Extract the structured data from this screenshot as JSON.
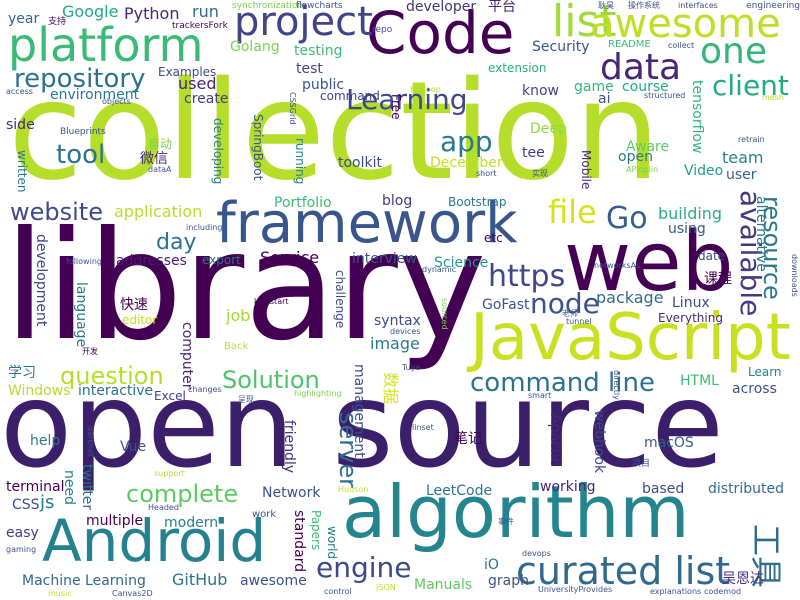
{
  "words": [
    {
      "text": "collection",
      "color": "#b5de2b",
      "rot": 0
    },
    {
      "text": "library",
      "color": "#440154",
      "rot": 0
    },
    {
      "text": "open source",
      "color": "#3b1f6b",
      "rot": 0
    },
    {
      "text": "algorithm",
      "color": "#25858e",
      "rot": 0
    },
    {
      "text": "Android",
      "color": "#26818e",
      "rot": 0
    },
    {
      "text": "JavaScript",
      "color": "#c8e020",
      "rot": 0
    },
    {
      "text": "framework",
      "color": "#39568c",
      "rot": 0
    },
    {
      "text": "web",
      "color": "#440154",
      "rot": 0
    },
    {
      "text": "Code",
      "color": "#440154",
      "rot": 0
    },
    {
      "text": "platform",
      "color": "#3aba76",
      "rot": 0
    },
    {
      "text": "project",
      "color": "#414487",
      "rot": 0
    },
    {
      "text": "list",
      "color": "#a0da39",
      "rot": 0
    },
    {
      "text": "awesome",
      "color": "#bddf26",
      "rot": 0
    },
    {
      "text": "data",
      "color": "#482576",
      "rot": 0
    },
    {
      "text": "one",
      "color": "#34b679",
      "rot": 0
    },
    {
      "text": "curated list",
      "color": "#31688e",
      "rot": 0
    },
    {
      "text": "repository",
      "color": "#2c728e",
      "rot": 0
    },
    {
      "text": "Learning",
      "color": "#3f4788",
      "rot": 0
    },
    {
      "text": "client",
      "color": "#25ab82",
      "rot": 0
    },
    {
      "text": "app",
      "color": "#2a788e",
      "rot": 0
    },
    {
      "text": "tool",
      "color": "#2c728e",
      "rot": 0
    },
    {
      "text": "website",
      "color": "#3e4a89",
      "rot": 0
    },
    {
      "text": "file",
      "color": "#d8e219",
      "rot": 0
    },
    {
      "text": "Go",
      "color": "#35608d",
      "rot": 0
    },
    {
      "text": "available",
      "color": "#453781",
      "rot": 90
    },
    {
      "text": "resource",
      "color": "#2a788e",
      "rot": 90
    },
    {
      "text": "https",
      "color": "#3f4889",
      "rot": 0
    },
    {
      "text": "node",
      "color": "#3b528b",
      "rot": 0
    },
    {
      "text": "command line",
      "color": "#2c728e",
      "rot": 0
    },
    {
      "text": "question",
      "color": "#b5de2b",
      "rot": 0
    },
    {
      "text": "Solution",
      "color": "#4ec36b",
      "rot": 0
    },
    {
      "text": "complete",
      "color": "#5ec962",
      "rot": 0
    },
    {
      "text": "engine",
      "color": "#3e4989",
      "rot": 0
    },
    {
      "text": "server",
      "color": "#2e6f8e",
      "rot": 90
    },
    {
      "text": "day",
      "color": "#2c728e",
      "rot": 0
    },
    {
      "text": "工具",
      "color": "#2f6c8e",
      "rot": 90
    },
    {
      "text": "Google",
      "color": "#22a884",
      "rot": 0
    },
    {
      "text": "Python",
      "color": "#482475",
      "rot": 0
    },
    {
      "text": "run",
      "color": "#31688e",
      "rot": 0
    },
    {
      "text": "developer",
      "color": "#46337e",
      "rot": 0
    },
    {
      "text": "平台",
      "color": "#482173",
      "rot": 0
    },
    {
      "text": "Golang",
      "color": "#7ad151",
      "rot": 0
    },
    {
      "text": "testing",
      "color": "#3dbc74",
      "rot": 0
    },
    {
      "text": "Security",
      "color": "#3b528b",
      "rot": 0
    },
    {
      "text": "test",
      "color": "#414487",
      "rot": 0
    },
    {
      "text": "extension",
      "color": "#29af7f",
      "rot": 0
    },
    {
      "text": "course",
      "color": "#22a884",
      "rot": 0
    },
    {
      "text": "game",
      "color": "#35b779",
      "rot": 0
    },
    {
      "text": "ai",
      "color": "#3b528b",
      "rot": 0
    },
    {
      "text": "know",
      "color": "#414487",
      "rot": 0
    },
    {
      "text": "environment",
      "color": "#2a788e",
      "rot": 0
    },
    {
      "text": "used",
      "color": "#482475",
      "rot": 0
    },
    {
      "text": "create",
      "color": "#433e85",
      "rot": 0
    },
    {
      "text": "public",
      "color": "#3b528b",
      "rot": 0
    },
    {
      "text": "command",
      "color": "#414487",
      "rot": 0
    },
    {
      "text": "year",
      "color": "#31688e",
      "rot": 0
    },
    {
      "text": "side",
      "color": "#482878",
      "rot": 0
    },
    {
      "text": "Examples",
      "color": "#3e4a89",
      "rot": 0
    },
    {
      "text": "Deep",
      "color": "#8fd744",
      "rot": 0
    },
    {
      "text": "tee",
      "color": "#443983",
      "rot": 0
    },
    {
      "text": "Aware",
      "color": "#5ec962",
      "rot": 0
    },
    {
      "text": "open",
      "color": "#2a788e",
      "rot": 0
    },
    {
      "text": "team",
      "color": "#26828e",
      "rot": 0
    },
    {
      "text": "user",
      "color": "#355f8d",
      "rot": 0
    },
    {
      "text": "Video",
      "color": "#1f9e89",
      "rot": 0
    },
    {
      "text": "Mobile",
      "color": "#482878",
      "rot": 90
    },
    {
      "text": "toolkit",
      "color": "#3e4a89",
      "rot": 0
    },
    {
      "text": "December",
      "color": "#c2df23",
      "rot": 0
    },
    {
      "text": "blog",
      "color": "#453781",
      "rot": 0
    },
    {
      "text": "Portfolio",
      "color": "#3aba76",
      "rot": 0
    },
    {
      "text": "Bootstrap",
      "color": "#2a788e",
      "rot": 0
    },
    {
      "text": "application",
      "color": "#b5de2b",
      "rot": 0
    },
    {
      "text": "building",
      "color": "#29af7f",
      "rot": 0
    },
    {
      "text": "using",
      "color": "#38598c",
      "rot": 0
    },
    {
      "text": "date",
      "color": "#3e4a89",
      "rot": 0
    },
    {
      "text": "addresses",
      "color": "#481b6d",
      "rot": 0
    },
    {
      "text": "export",
      "color": "#2c728e",
      "rot": 0
    },
    {
      "text": "Service",
      "color": "#440154",
      "rot": 0
    },
    {
      "text": "interview",
      "color": "#3b528b",
      "rot": 0
    },
    {
      "text": "Science",
      "color": "#1f9a8a",
      "rot": 0
    },
    {
      "text": "GoFast",
      "color": "#3b528b",
      "rot": 0
    },
    {
      "text": "package",
      "color": "#2f6c8e",
      "rot": 0
    },
    {
      "text": "Linux",
      "color": "#3e4a89",
      "rot": 0
    },
    {
      "text": "Everything",
      "color": "#482878",
      "rot": 0
    },
    {
      "text": "language",
      "color": "#2a788e",
      "rot": 90
    },
    {
      "text": "development",
      "color": "#404688",
      "rot": 90
    },
    {
      "text": "快速",
      "color": "#440154",
      "rot": 0
    },
    {
      "text": "editor",
      "color": "#c2df23",
      "rot": 0
    },
    {
      "text": "job",
      "color": "#a2da37",
      "rot": 0
    },
    {
      "text": "syntax",
      "color": "#3e4a89",
      "rot": 0
    },
    {
      "text": "image",
      "color": "#2a788e",
      "rot": 0
    },
    {
      "text": "数据",
      "color": "#d8e219",
      "rot": 90
    },
    {
      "text": "学习",
      "color": "#2c728e",
      "rot": 0
    },
    {
      "text": "Windows",
      "color": "#b5de2b",
      "rot": 0
    },
    {
      "text": "interactive",
      "color": "#2c728e",
      "rot": 0
    },
    {
      "text": "Excel",
      "color": "#414487",
      "rot": 0
    },
    {
      "text": "HTML",
      "color": "#3dbc74",
      "rot": 0
    },
    {
      "text": "across",
      "color": "#3b528b",
      "rot": 0
    },
    {
      "text": "Learn",
      "color": "#26828e",
      "rot": 0
    },
    {
      "text": "课程",
      "color": "#440154",
      "rot": 0
    },
    {
      "text": "help",
      "color": "#2a788e",
      "rot": 0
    },
    {
      "text": "Vue",
      "color": "#3b528b",
      "rot": 0
    },
    {
      "text": "friendly",
      "color": "#46327e",
      "rot": 90
    },
    {
      "text": "management",
      "color": "#3b528b",
      "rot": 90
    },
    {
      "text": "笔记",
      "color": "#440154",
      "rot": 0
    },
    {
      "text": "Apache",
      "color": "#482878",
      "rot": 90
    },
    {
      "text": "webhook",
      "color": "#3e4a89",
      "rot": 90
    },
    {
      "text": "macOS",
      "color": "#34618d",
      "rot": 0
    },
    {
      "text": "terminal",
      "color": "#440154",
      "rot": 0
    },
    {
      "text": "CSS",
      "color": "#3b528b",
      "rot": 0
    },
    {
      "text": "js",
      "color": "#2a788e",
      "rot": 0
    },
    {
      "text": "need",
      "color": "#26828e",
      "rot": 90
    },
    {
      "text": "twitter",
      "color": "#2c728e",
      "rot": 90
    },
    {
      "text": "Network",
      "color": "#3b528b",
      "rot": 0
    },
    {
      "text": "LeetCode",
      "color": "#2a788e",
      "rot": 0
    },
    {
      "text": "working",
      "color": "#482475",
      "rot": 0
    },
    {
      "text": "based",
      "color": "#3e4a89",
      "rot": 0
    },
    {
      "text": "distributed",
      "color": "#2f6c8e",
      "rot": 0
    },
    {
      "text": "multiple",
      "color": "#440154",
      "rot": 0
    },
    {
      "text": "modern",
      "color": "#26828e",
      "rot": 0
    },
    {
      "text": "easy",
      "color": "#433e85",
      "rot": 0
    },
    {
      "text": "standard",
      "color": "#440154",
      "rot": 90
    },
    {
      "text": "Papers",
      "color": "#3dbc74",
      "rot": 90
    },
    {
      "text": "iO",
      "color": "#31688e",
      "rot": 0
    },
    {
      "text": "graph",
      "color": "#3b528b",
      "rot": 0
    },
    {
      "text": "Machine Learning",
      "color": "#31688e",
      "rot": 0
    },
    {
      "text": "GitHub",
      "color": "#2c728e",
      "rot": 0
    },
    {
      "text": "awesome",
      "color": "#3b528b",
      "rot": 0
    },
    {
      "text": "Manuals",
      "color": "#5ec962",
      "rot": 0
    },
    {
      "text": "吴恩达",
      "color": "#46327e",
      "rot": 0
    },
    {
      "text": "README",
      "color": "#3dbc74",
      "rot": 0
    },
    {
      "text": "Blueprints",
      "color": "#3b528b",
      "rot": 0
    },
    {
      "text": "微信",
      "color": "#482878",
      "rot": 0
    },
    {
      "text": "自动",
      "color": "#7ad151",
      "rot": 0
    },
    {
      "text": "SpringBoot",
      "color": "#3b528b",
      "rot": 90
    },
    {
      "text": "developing",
      "color": "#2a788e",
      "rot": 90
    },
    {
      "text": "running",
      "color": "#26828e",
      "rot": 90
    },
    {
      "text": "tensorflow",
      "color": "#2fb47c",
      "rot": 90
    },
    {
      "text": "written",
      "color": "#2a788e",
      "rot": 90
    },
    {
      "text": "alternative",
      "color": "#2a788e",
      "rot": 90
    },
    {
      "text": "computer",
      "color": "#482878",
      "rot": 90
    },
    {
      "text": "challenge",
      "color": "#3e4a89",
      "rot": 90
    },
    {
      "text": "Free",
      "color": "#440154",
      "rot": 90
    },
    {
      "text": "etc",
      "color": "#440154",
      "rot": 0
    },
    {
      "text": "支持",
      "color": "#440154",
      "rot": 0
    },
    {
      "text": "trackersFork",
      "color": "#440154",
      "rot": 0
    },
    {
      "text": "synchronization",
      "color": "#7ad151",
      "rot": 0
    },
    {
      "text": "flowcharts",
      "color": "#3b528b",
      "rot": 0
    },
    {
      "text": "engineering",
      "color": "#3b528b",
      "rot": 0
    },
    {
      "text": "repo",
      "color": "#3b528b",
      "rot": 0
    },
    {
      "text": "collect",
      "color": "#3b528b",
      "rot": 0
    },
    {
      "text": "Hadoop",
      "color": "#b5de2b",
      "rot": 0
    },
    {
      "text": "access",
      "color": "#3b528b",
      "rot": 0
    },
    {
      "text": "objects",
      "color": "#3b528b",
      "rot": 0
    },
    {
      "text": "structured",
      "color": "#3b528b",
      "rot": 0
    },
    {
      "text": "retrain",
      "color": "#3b528b",
      "rot": 0
    },
    {
      "text": "short",
      "color": "#3b528b",
      "rot": 0
    },
    {
      "text": "实现",
      "color": "#3b528b",
      "rot": 0
    },
    {
      "text": "APIoplin",
      "color": "#7ad151",
      "rot": 0
    },
    {
      "text": "dataA",
      "color": "#3b528b",
      "rot": 0
    },
    {
      "text": "including",
      "color": "#3b528b",
      "rot": 0
    },
    {
      "text": "following",
      "color": "#3b528b",
      "rot": 0
    },
    {
      "text": "networksAs",
      "color": "#3b528b",
      "rot": 0
    },
    {
      "text": "kickstart",
      "color": "#440154",
      "rot": 0
    },
    {
      "text": "dynamic",
      "color": "#3b528b",
      "rot": 0
    },
    {
      "text": "老师",
      "color": "#3b528b",
      "rot": 0
    },
    {
      "text": "tunnel",
      "color": "#3b528b",
      "rot": 0
    },
    {
      "text": "开发",
      "color": "#440154",
      "rot": 0
    },
    {
      "text": "devices",
      "color": "#3b528b",
      "rot": 0
    },
    {
      "text": "Tuya",
      "color": "#3b528b",
      "rot": 0
    },
    {
      "text": "Back",
      "color": "#c2df23",
      "rot": 0
    },
    {
      "text": "changes",
      "color": "#3b528b",
      "rot": 0
    },
    {
      "text": "呈现",
      "color": "#3b528b",
      "rot": 0
    },
    {
      "text": "highlighting",
      "color": "#7ad151",
      "rot": 0
    },
    {
      "text": "smart",
      "color": "#3b528b",
      "rot": 0
    },
    {
      "text": "linset",
      "color": "#3b528b",
      "rot": 0
    },
    {
      "text": "项目",
      "color": "#3b528b",
      "rot": 0
    },
    {
      "text": "support",
      "color": "#b5de2b",
      "rot": 0
    },
    {
      "text": "Headed",
      "color": "#3b528b",
      "rot": 0
    },
    {
      "text": "Hudson",
      "color": "#c2df23",
      "rot": 0
    },
    {
      "text": "事件",
      "color": "#3b528b",
      "rot": 0
    },
    {
      "text": "devops",
      "color": "#3b528b",
      "rot": 0
    },
    {
      "text": "gaming",
      "color": "#3b528b",
      "rot": 0
    },
    {
      "text": "music",
      "color": "#c2df23",
      "rot": 0
    },
    {
      "text": "Canvas2D",
      "color": "#3b528b",
      "rot": 0
    },
    {
      "text": "control",
      "color": "#3b528b",
      "rot": 0
    },
    {
      "text": "JSON",
      "color": "#c2df23",
      "rot": 0
    },
    {
      "text": "UniversityProvides",
      "color": "#3b528b",
      "rot": 0
    },
    {
      "text": "explanations",
      "color": "#3b528b",
      "rot": 0
    },
    {
      "text": "codemod",
      "color": "#3b528b",
      "rot": 0
    },
    {
      "text": "耿昊",
      "color": "#3b528b",
      "rot": 0
    },
    {
      "text": "操作系统",
      "color": "#3b528b",
      "rot": 0
    },
    {
      "text": "interfaces",
      "color": "#3b528b",
      "rot": 0
    },
    {
      "text": "mesh",
      "color": "#c2df23",
      "rot": 0
    },
    {
      "text": "work",
      "color": "#3b528b",
      "rot": 0
    },
    {
      "text": "world",
      "color": "#2a788e",
      "rot": 90
    },
    {
      "text": "directly",
      "color": "#3b528b",
      "rot": 90
    },
    {
      "text": "downloads",
      "color": "#3b528b",
      "rot": 90
    },
    {
      "text": "CSSGrid",
      "color": "#3b528b",
      "rot": 90
    },
    {
      "text": "darknet",
      "color": "#3b528b",
      "rot": 90
    },
    {
      "text": "sourced",
      "color": "#7ad151",
      "rot": 90
    }
  ]
}
